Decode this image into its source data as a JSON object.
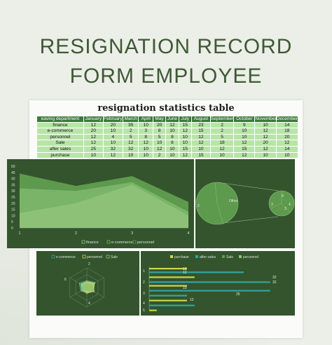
{
  "header": {
    "line1": "RESIGNATION RECORD",
    "line2": "FORM EMPLOYEE"
  },
  "table": {
    "title": "resignation statistics table",
    "columns": [
      "eaving department",
      "January",
      "February",
      "March",
      "April",
      "May",
      "June",
      "July",
      "August",
      "September",
      "October",
      "November",
      "December"
    ],
    "rows": [
      [
        "finance",
        "12",
        "20",
        "35",
        "10",
        "20",
        "12",
        "15",
        "23",
        "2",
        "9",
        "10",
        "14"
      ],
      [
        "e-commerce",
        "20",
        "10",
        "2",
        "3",
        "8",
        "10",
        "12",
        "15",
        "2",
        "10",
        "12",
        "18"
      ],
      [
        "personnel",
        "12",
        "4",
        "5",
        "8",
        "5",
        "8",
        "10",
        "12",
        "5",
        "10",
        "12",
        "20"
      ],
      [
        "Sale",
        "12",
        "10",
        "12",
        "12",
        "10",
        "8",
        "10",
        "12",
        "18",
        "12",
        "20",
        "12"
      ],
      [
        "after sales",
        "25",
        "32",
        "32",
        "10",
        "12",
        "10",
        "15",
        "10",
        "12",
        "15",
        "12",
        "14"
      ],
      [
        "purchase",
        "10",
        "12",
        "10",
        "10",
        "2",
        "10",
        "12",
        "15",
        "10",
        "12",
        "10",
        "10"
      ]
    ]
  },
  "colors": {
    "background": "#eceee8",
    "title": "#3e5a35",
    "panel": "#33542d",
    "header_row": "#3a7a38",
    "data_row": "#b9e4a9",
    "light_green": "#8fc27a",
    "mid_green": "#5e9a4d",
    "lime": "#c9d84a",
    "teal": "#2fa6a0"
  },
  "chart_data": [
    {
      "type": "area",
      "x": [
        1,
        2,
        3,
        4
      ],
      "xticks": [
        "1",
        "2",
        "3",
        "4"
      ],
      "yticks": [
        "0",
        "5",
        "10",
        "15",
        "20",
        "25",
        "30",
        "35",
        "40",
        "45",
        "50"
      ],
      "ylim": [
        0,
        50
      ],
      "series": [
        {
          "name": "finance",
          "values": [
            12,
            20,
            35,
            10
          ]
        },
        {
          "name": "e-commerce",
          "values": [
            20,
            10,
            2,
            3
          ]
        },
        {
          "name": "personnel",
          "values": [
            12,
            4,
            5,
            8
          ]
        }
      ],
      "legend": "bottom",
      "grid": false
    },
    {
      "type": "pie",
      "labels": [
        "2",
        "Other",
        "3",
        "9",
        "3",
        "4"
      ],
      "note": "pie of pie"
    },
    {
      "type": "radar",
      "axes": [
        "6",
        "2",
        "4"
      ],
      "series": [
        {
          "name": "e-commerce"
        },
        {
          "name": "personnel"
        },
        {
          "name": "Sale"
        }
      ],
      "legend": "top"
    },
    {
      "type": "bar",
      "orientation": "horizontal",
      "categories": [
        "1",
        "2",
        "3",
        "4",
        "5"
      ],
      "series": [
        {
          "name": "purchase",
          "values": [
            10,
            12,
            10,
            10,
            2
          ]
        },
        {
          "name": "after sales",
          "values": [
            25,
            32,
            32,
            10,
            12
          ]
        },
        {
          "name": "Sale",
          "values": [
            12,
            10,
            12,
            12,
            10
          ]
        },
        {
          "name": "personnel",
          "values": [
            12,
            4,
            5,
            8,
            5
          ]
        }
      ],
      "data_labels": [
        "10",
        "12",
        "32",
        "32",
        "10",
        "25",
        "12"
      ],
      "legend": "top"
    }
  ]
}
